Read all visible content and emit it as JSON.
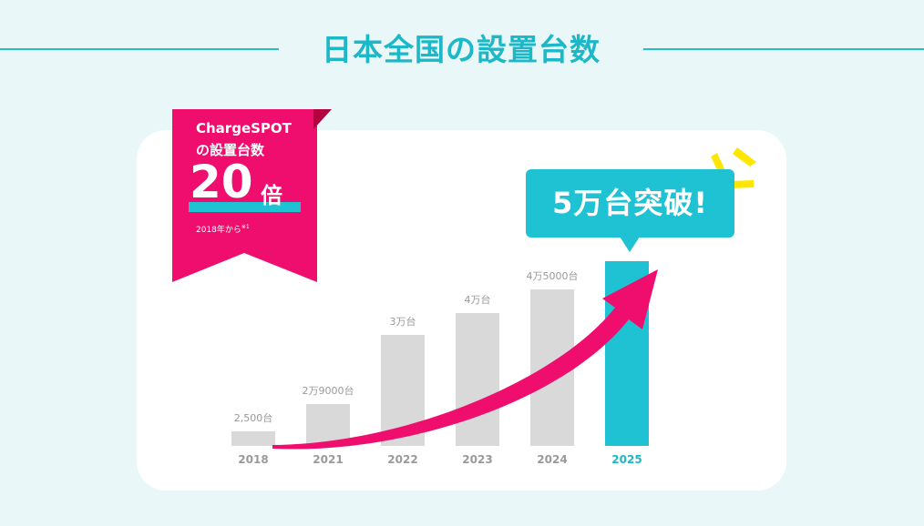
{
  "page_title": "日本全国の設置台数",
  "badge": {
    "line1": "ChargeSPOT",
    "line2": "の設置台数",
    "number": "20",
    "unit": "倍",
    "note": "2018年から",
    "note_mark": "※1"
  },
  "callout": "5万台突破!",
  "colors": {
    "accent": "#1fc2d2",
    "pink": "#ef0e6e",
    "bar_gray": "#d9d9d9",
    "background": "#e9f7f8"
  },
  "chart_data": {
    "type": "bar",
    "categories": [
      "2018",
      "2021",
      "2022",
      "2023",
      "2024",
      "2025"
    ],
    "values": [
      2500,
      29000,
      30000,
      40000,
      45000,
      50000
    ],
    "data_labels": [
      "2,500台",
      "2万9000台",
      "3万台",
      "4万台",
      "4万5000台",
      ""
    ],
    "highlight_category": "2025",
    "title": "",
    "xlabel": "",
    "ylabel": "",
    "grid": false
  }
}
